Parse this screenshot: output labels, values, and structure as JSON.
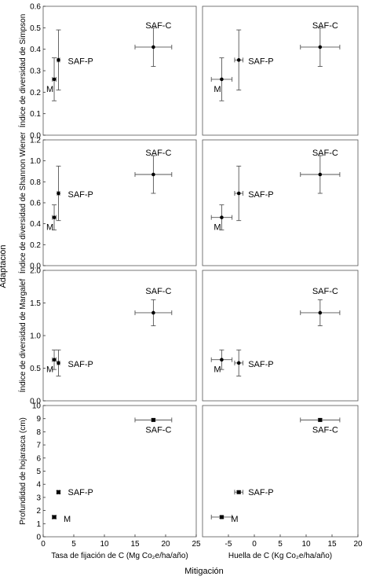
{
  "figure": {
    "outer_y_label": "Adaptación",
    "outer_x_label": "Mitigación"
  },
  "chart_data": [
    {
      "type": "scatter",
      "ylabel": "Índice de diversidad de Simpson",
      "xlabel": "",
      "xlim": [
        0,
        25
      ],
      "ylim": [
        0,
        0.6
      ],
      "xticks": [],
      "yticks": [
        0,
        0.1,
        0.2,
        0.3,
        0.4,
        0.5,
        0.6
      ],
      "points": [
        {
          "label": "M",
          "x": 1.8,
          "y": 0.26,
          "xerr": 0.3,
          "yerr": 0.1
        },
        {
          "label": "SAF-P",
          "x": 2.5,
          "y": 0.35,
          "xerr": 0.2,
          "yerr": 0.14
        },
        {
          "label": "SAF-C",
          "x": 18.0,
          "y": 0.41,
          "xerr": 3.0,
          "yerr": 0.09
        }
      ]
    },
    {
      "type": "scatter",
      "ylabel": "",
      "xlabel": "",
      "xlim": [
        -10,
        20
      ],
      "ylim": [
        0,
        0.6
      ],
      "xticks": [],
      "yticks": [],
      "points": [
        {
          "label": "M",
          "x": -6.3,
          "y": 0.26,
          "xerr": 2.0,
          "yerr": 0.1
        },
        {
          "label": "SAF-P",
          "x": -3.0,
          "y": 0.35,
          "xerr": 0.8,
          "yerr": 0.14
        },
        {
          "label": "SAF-C",
          "x": 12.7,
          "y": 0.41,
          "xerr": 3.8,
          "yerr": 0.09
        }
      ]
    },
    {
      "type": "scatter",
      "ylabel": "Índice de diversidad de Shannon Wiener",
      "xlabel": "",
      "xlim": [
        0,
        25
      ],
      "ylim": [
        0,
        1.2
      ],
      "xticks": [],
      "yticks": [
        0,
        0.2,
        0.4,
        0.6,
        0.8,
        1.0,
        1.2
      ],
      "points": [
        {
          "label": "M",
          "x": 1.8,
          "y": 0.46,
          "xerr": 0.3,
          "yerr": 0.12
        },
        {
          "label": "SAF-P",
          "x": 2.5,
          "y": 0.69,
          "xerr": 0.2,
          "yerr": 0.26
        },
        {
          "label": "SAF-C",
          "x": 18.0,
          "y": 0.87,
          "xerr": 3.0,
          "yerr": 0.18
        }
      ]
    },
    {
      "type": "scatter",
      "ylabel": "",
      "xlabel": "",
      "xlim": [
        -10,
        20
      ],
      "ylim": [
        0,
        1.2
      ],
      "xticks": [],
      "yticks": [],
      "points": [
        {
          "label": "M",
          "x": -6.3,
          "y": 0.46,
          "xerr": 2.0,
          "yerr": 0.12
        },
        {
          "label": "SAF-P",
          "x": -3.0,
          "y": 0.69,
          "xerr": 0.8,
          "yerr": 0.26
        },
        {
          "label": "SAF-C",
          "x": 12.7,
          "y": 0.87,
          "xerr": 3.8,
          "yerr": 0.18
        }
      ]
    },
    {
      "type": "scatter",
      "ylabel": "Índice de diversidad de Margalef",
      "xlabel": "",
      "xlim": [
        0,
        25
      ],
      "ylim": [
        0,
        2.0
      ],
      "xticks": [],
      "yticks": [
        0,
        0.5,
        1.0,
        1.5,
        2.0
      ],
      "points": [
        {
          "label": "M",
          "x": 1.8,
          "y": 0.63,
          "xerr": 0.3,
          "yerr": 0.15
        },
        {
          "label": "SAF-P",
          "x": 2.5,
          "y": 0.58,
          "xerr": 0.2,
          "yerr": 0.2
        },
        {
          "label": "SAF-C",
          "x": 18.0,
          "y": 1.35,
          "xerr": 3.0,
          "yerr": 0.2
        }
      ]
    },
    {
      "type": "scatter",
      "ylabel": "",
      "xlabel": "",
      "xlim": [
        -10,
        20
      ],
      "ylim": [
        0,
        2.0
      ],
      "xticks": [],
      "yticks": [],
      "points": [
        {
          "label": "M",
          "x": -6.3,
          "y": 0.63,
          "xerr": 2.0,
          "yerr": 0.15
        },
        {
          "label": "SAF-P",
          "x": -3.0,
          "y": 0.58,
          "xerr": 0.8,
          "yerr": 0.2
        },
        {
          "label": "SAF-C",
          "x": 12.7,
          "y": 1.35,
          "xerr": 3.8,
          "yerr": 0.2
        }
      ]
    },
    {
      "type": "scatter",
      "ylabel": "Profundidad de hojarasca (cm)",
      "xlabel": "Tasa de fijación de C (Mg Co₂e/ha/año)",
      "xlim": [
        0,
        25
      ],
      "ylim": [
        0,
        10
      ],
      "xticks": [
        0,
        5,
        10,
        15,
        20,
        25
      ],
      "yticks": [
        0,
        1,
        2,
        3,
        4,
        5,
        6,
        7,
        8,
        9,
        10
      ],
      "points": [
        {
          "label": "M",
          "x": 1.8,
          "y": 1.5,
          "xerr": 0.3,
          "yerr": 0.1
        },
        {
          "label": "SAF-P",
          "x": 2.5,
          "y": 3.4,
          "xerr": 0.2,
          "yerr": 0.1
        },
        {
          "label": "SAF-C",
          "x": 18.0,
          "y": 8.9,
          "xerr": 3.0,
          "yerr": 0.1
        }
      ]
    },
    {
      "type": "scatter",
      "ylabel": "",
      "xlabel": "Huella de C (Kg Co₂e/ha/año)",
      "xlim": [
        -10,
        20
      ],
      "ylim": [
        0,
        10
      ],
      "xticks": [
        -5,
        0,
        5,
        10,
        15,
        20
      ],
      "yticks": [],
      "points": [
        {
          "label": "M",
          "x": -6.3,
          "y": 1.5,
          "xerr": 2.0,
          "yerr": 0.1
        },
        {
          "label": "SAF-P",
          "x": -3.0,
          "y": 3.4,
          "xerr": 0.8,
          "yerr": 0.1
        },
        {
          "label": "SAF-C",
          "x": 12.7,
          "y": 8.9,
          "xerr": 3.8,
          "yerr": 0.1
        }
      ]
    }
  ]
}
